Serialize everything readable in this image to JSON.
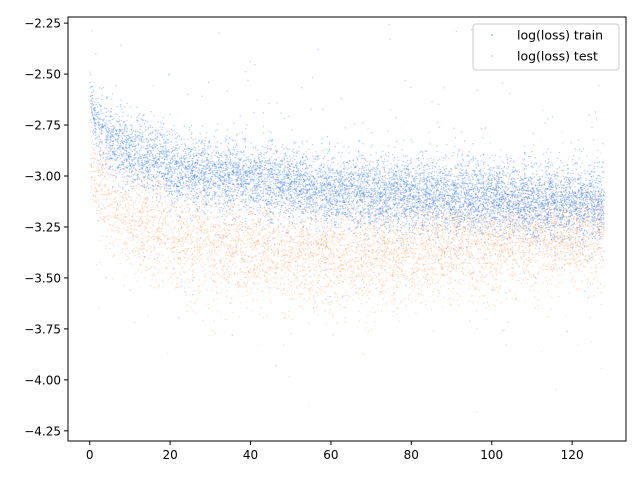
{
  "chart_data": {
    "type": "scatter",
    "title": "",
    "xlabel": "",
    "ylabel": "",
    "xlim": [
      -5.4,
      133.4
    ],
    "ylim": [
      -4.3,
      -2.22
    ],
    "xticks": [
      0,
      20,
      40,
      60,
      80,
      100,
      120
    ],
    "yticks": [
      -4.25,
      -4.0,
      -3.75,
      -3.5,
      -3.25,
      -3.0,
      -2.75,
      -2.5,
      -2.25
    ],
    "xtick_labels": [
      "0",
      "20",
      "40",
      "60",
      "80",
      "100",
      "120"
    ],
    "ytick_labels": [
      "−4.25",
      "−4.00",
      "−3.75",
      "−3.50",
      "−3.25",
      "−3.00",
      "−2.75",
      "−2.50",
      "−2.25"
    ],
    "grid": false,
    "legend_position": "top-right",
    "series": [
      {
        "name": "log(loss) train",
        "color": "#1f6fff",
        "x": [
          0,
          1,
          2,
          4,
          6,
          8,
          10,
          15,
          20,
          30,
          40,
          50,
          60,
          70,
          80,
          90,
          100,
          110,
          120,
          128
        ],
        "y": [
          -2.55,
          -2.7,
          -2.76,
          -2.81,
          -2.84,
          -2.86,
          -2.88,
          -2.92,
          -2.95,
          -2.99,
          -3.02,
          -3.05,
          -3.07,
          -3.08,
          -3.09,
          -3.1,
          -3.11,
          -3.12,
          -3.13,
          -3.13
        ]
      },
      {
        "name": "log(loss) test",
        "color": "#ff9a4d",
        "x": [
          0,
          1,
          2,
          4,
          6,
          8,
          10,
          15,
          20,
          30,
          40,
          50,
          60,
          70,
          80,
          90,
          100,
          110,
          120,
          128
        ],
        "y": [
          -2.88,
          -2.98,
          -3.04,
          -3.1,
          -3.14,
          -3.17,
          -3.2,
          -3.25,
          -3.29,
          -3.33,
          -3.36,
          -3.38,
          -3.39,
          -3.37,
          -3.36,
          -3.34,
          -3.32,
          -3.3,
          -3.29,
          -3.28
        ]
      }
    ]
  }
}
